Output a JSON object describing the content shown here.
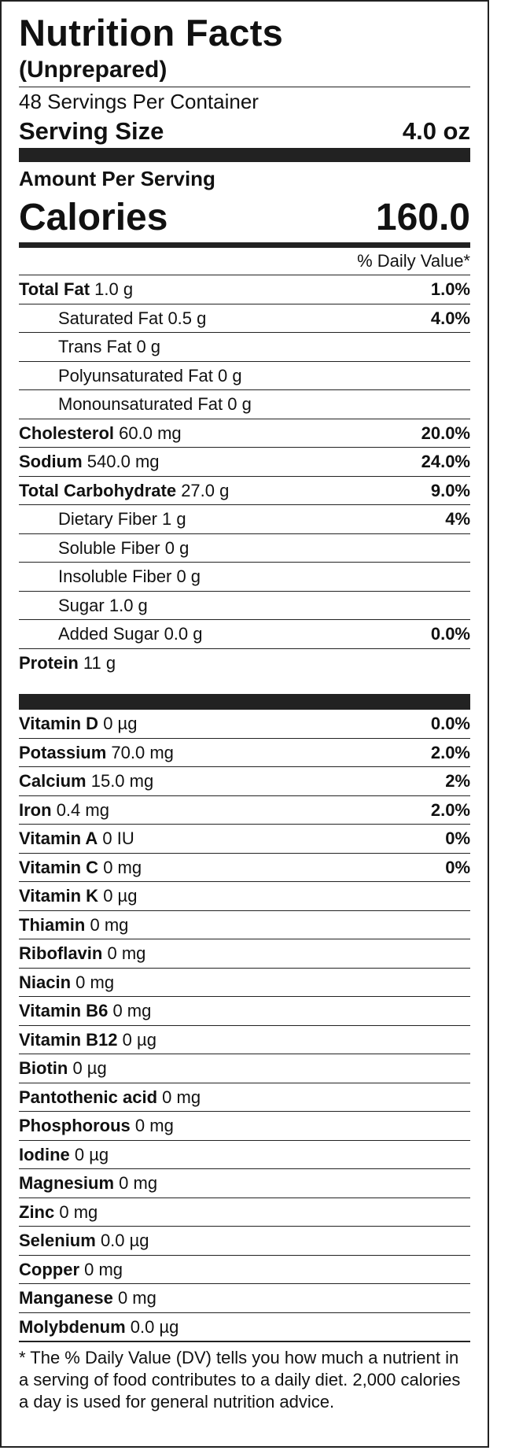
{
  "label": {
    "title": "Nutrition Facts",
    "subtitle": "(Unprepared)",
    "servings_per_container": "48 Servings Per Container",
    "serving_size_label": "Serving Size",
    "serving_size_value": "4.0 oz",
    "amount_per_serving": "Amount Per Serving",
    "calories_label": "Calories",
    "calories_value": "160.0",
    "daily_value_header": "% Daily Value*",
    "macros": [
      {
        "name": "Total Fat",
        "amount": "1.0 g",
        "dv": "1.0%"
      },
      {
        "name": "Saturated Fat",
        "amount": "0.5 g",
        "dv": "4.0%"
      },
      {
        "name": "Trans Fat",
        "amount": "0 g",
        "dv": ""
      },
      {
        "name": "Polyunsaturated Fat",
        "amount": "0 g",
        "dv": ""
      },
      {
        "name": "Monounsaturated Fat",
        "amount": "0 g",
        "dv": ""
      },
      {
        "name": "Cholesterol",
        "amount": "60.0 mg",
        "dv": "20.0%"
      },
      {
        "name": "Sodium",
        "amount": "540.0 mg",
        "dv": "24.0%"
      },
      {
        "name": "Total Carbohydrate",
        "amount": "27.0 g",
        "dv": "9.0%"
      },
      {
        "name": "Dietary Fiber",
        "amount": "1 g",
        "dv": "4%"
      },
      {
        "name": "Soluble Fiber",
        "amount": "0 g",
        "dv": ""
      },
      {
        "name": "Insoluble Fiber",
        "amount": "0 g",
        "dv": ""
      },
      {
        "name": "Sugar",
        "amount": "1.0 g",
        "dv": ""
      },
      {
        "name": "Added Sugar",
        "amount": "0.0 g",
        "dv": "0.0%"
      },
      {
        "name": "Protein",
        "amount": "11 g",
        "dv": ""
      }
    ],
    "micros": [
      {
        "name": "Vitamin D",
        "amount": "0 µg",
        "dv": "0.0%"
      },
      {
        "name": "Potassium",
        "amount": "70.0 mg",
        "dv": "2.0%"
      },
      {
        "name": "Calcium",
        "amount": "15.0 mg",
        "dv": "2%"
      },
      {
        "name": "Iron",
        "amount": "0.4 mg",
        "dv": "2.0%"
      },
      {
        "name": "Vitamin A",
        "amount": "0 IU",
        "dv": "0%"
      },
      {
        "name": "Vitamin C",
        "amount": "0 mg",
        "dv": "0%"
      },
      {
        "name": "Vitamin K",
        "amount": "0 µg",
        "dv": ""
      },
      {
        "name": "Thiamin",
        "amount": "0 mg",
        "dv": ""
      },
      {
        "name": "Riboflavin",
        "amount": "0 mg",
        "dv": ""
      },
      {
        "name": "Niacin",
        "amount": "0 mg",
        "dv": ""
      },
      {
        "name": "Vitamin B6",
        "amount": "0 mg",
        "dv": ""
      },
      {
        "name": "Vitamin B12",
        "amount": "0 µg",
        "dv": ""
      },
      {
        "name": "Biotin",
        "amount": "0 µg",
        "dv": ""
      },
      {
        "name": "Pantothenic acid",
        "amount": "0 mg",
        "dv": ""
      },
      {
        "name": "Phosphorous",
        "amount": "0 mg",
        "dv": ""
      },
      {
        "name": "Iodine",
        "amount": "0 µg",
        "dv": ""
      },
      {
        "name": "Magnesium",
        "amount": "0 mg",
        "dv": ""
      },
      {
        "name": "Zinc",
        "amount": "0 mg",
        "dv": ""
      },
      {
        "name": "Selenium",
        "amount": "0.0 µg",
        "dv": ""
      },
      {
        "name": "Copper",
        "amount": "0 mg",
        "dv": ""
      },
      {
        "name": "Manganese",
        "amount": "0 mg",
        "dv": ""
      },
      {
        "name": "Molybdenum",
        "amount": "0.0 µg",
        "dv": ""
      }
    ],
    "footnote": "* The % Daily Value (DV) tells you how much a nutrient in a serving of food contributes to a daily diet. 2,000 calories a day is used for general nutrition advice."
  }
}
